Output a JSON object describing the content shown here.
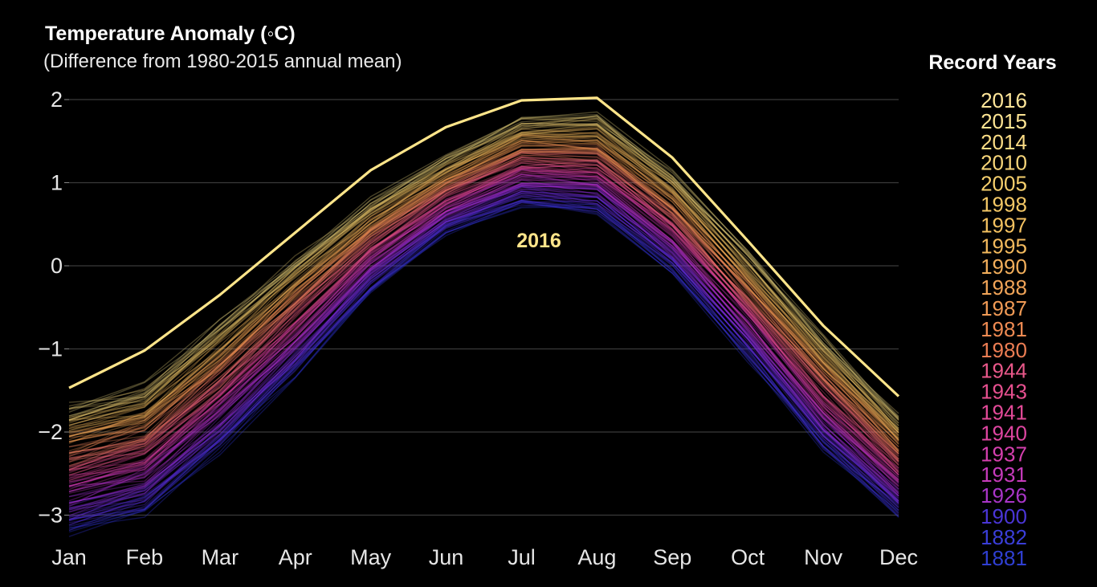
{
  "chart_data": {
    "type": "line",
    "title": "Temperature Anomaly (◦C)",
    "subtitle": "(Difference from 1980-2015 annual mean)",
    "xlabel": "",
    "ylabel": "",
    "categories": [
      "Jan",
      "Feb",
      "Mar",
      "Apr",
      "May",
      "Jun",
      "Jul",
      "Aug",
      "Sep",
      "Oct",
      "Nov",
      "Dec"
    ],
    "yticks": [
      2,
      1,
      0,
      -1,
      -2,
      -3
    ],
    "ytick_labels": [
      "2",
      "1",
      "0",
      "−1",
      "−2",
      "−3"
    ],
    "ylim": [
      -3.3,
      2.5
    ],
    "grid": true,
    "highlight_series": {
      "name": "2016",
      "values": [
        -1.47,
        -1.02,
        -0.35,
        0.4,
        1.15,
        1.67,
        1.99,
        2.02,
        1.3,
        0.3,
        -0.72,
        -1.57
      ],
      "color": "#ffe58a"
    },
    "annotation": "2016",
    "envelope": {
      "description": "one faint line per year, warm/recent years on top, cool/early years at bottom",
      "upper": [
        -1.7,
        -1.45,
        -0.7,
        0.1,
        0.78,
        1.3,
        1.77,
        1.8,
        1.1,
        0.15,
        -0.85,
        -1.8
      ],
      "lower": [
        -3.2,
        -2.95,
        -2.2,
        -1.3,
        -0.3,
        0.4,
        0.75,
        0.65,
        -0.05,
        -1.1,
        -2.2,
        -3.0
      ],
      "color_stops": [
        "#2a35d8",
        "#6a2de0",
        "#b02fd0",
        "#e0409a",
        "#f06d6a",
        "#f59a50",
        "#e8b85a",
        "#d9c97a"
      ]
    },
    "legend": {
      "title": "Record Years",
      "position": "right",
      "items": [
        {
          "label": "2016",
          "color": "#ffe69a"
        },
        {
          "label": "2015",
          "color": "#fde493"
        },
        {
          "label": "2014",
          "color": "#fbdc85"
        },
        {
          "label": "2010",
          "color": "#f8d67a"
        },
        {
          "label": "2005",
          "color": "#f6cf6d"
        },
        {
          "label": "1998",
          "color": "#f4c866"
        },
        {
          "label": "1997",
          "color": "#f3c160"
        },
        {
          "label": "1995",
          "color": "#f2b95d"
        },
        {
          "label": "1990",
          "color": "#f2ae5b"
        },
        {
          "label": "1988",
          "color": "#f1a458"
        },
        {
          "label": "1987",
          "color": "#f09a55"
        },
        {
          "label": "1981",
          "color": "#ee8a52"
        },
        {
          "label": "1980",
          "color": "#ec7d53"
        },
        {
          "label": "1944",
          "color": "#e9588a"
        },
        {
          "label": "1943",
          "color": "#e6508f"
        },
        {
          "label": "1941",
          "color": "#e24a98"
        },
        {
          "label": "1940",
          "color": "#dd45a0"
        },
        {
          "label": "1937",
          "color": "#d43fae"
        },
        {
          "label": "1931",
          "color": "#c63bbb"
        },
        {
          "label": "1926",
          "color": "#a935c8"
        },
        {
          "label": "1900",
          "color": "#4a35d6"
        },
        {
          "label": "1882",
          "color": "#3a3ed8"
        },
        {
          "label": "1881",
          "color": "#2f3fd2"
        }
      ]
    }
  }
}
